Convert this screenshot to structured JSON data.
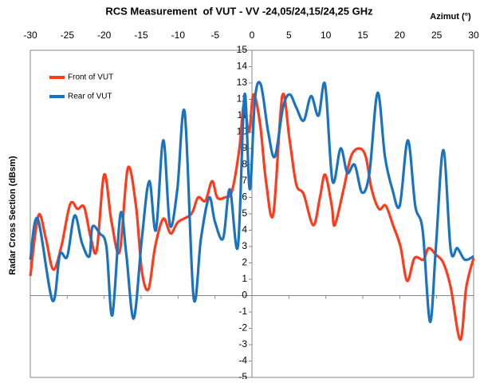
{
  "chart_data": {
    "type": "line",
    "title": "RCS Measurement  of VUT - VV -24,05/24,15/24,25 GHz",
    "x_label": "Azimut (°)",
    "y_label": "Radar Cross Section (dBsm)",
    "xlim": [
      -30,
      30
    ],
    "xticks": [
      -30,
      -25,
      -20,
      -15,
      -10,
      -5,
      0,
      5,
      10,
      15,
      20,
      25,
      30
    ],
    "ylim": [
      -5,
      15
    ],
    "yticks": [
      -5,
      -4,
      -3,
      -2,
      -1,
      0,
      1,
      2,
      3,
      4,
      5,
      6,
      7,
      8,
      9,
      10,
      11,
      12,
      13,
      14,
      15
    ],
    "legend": "top-left",
    "series": [
      {
        "name": "Front of VUT",
        "color": "#ff3b1c",
        "x": [
          -30,
          -28.9,
          -27.9,
          -26.9,
          -25.8,
          -24.6,
          -23.6,
          -22.7,
          -21.8,
          -21,
          -20,
          -19,
          -17.9,
          -16.8,
          -15.7,
          -14.9,
          -14,
          -13.1,
          -12,
          -11,
          -10,
          -8.2,
          -7.3,
          -6.3,
          -5.4,
          -4.7,
          -3.7,
          -2.7,
          -1.7,
          -1.1,
          -0.4,
          0.2,
          1.1,
          1.9,
          2.9,
          4.1,
          5.1,
          6,
          7,
          8.3,
          9.2,
          9.9,
          10.8,
          11.2,
          12.4,
          13.4,
          14.5,
          15.4,
          16.2,
          17.2,
          18.1,
          19.1,
          20.1,
          21,
          22,
          23.2,
          23.9,
          24.9,
          25.9,
          26.9,
          28.2,
          29,
          30
        ],
        "values": [
          1.2,
          4.9,
          3.5,
          1.6,
          3.0,
          5.6,
          5.3,
          5.4,
          3.5,
          2.8,
          7.4,
          4.5,
          2.7,
          7.8,
          5.5,
          1.5,
          0.4,
          3.0,
          4.7,
          3.8,
          4.5,
          5.0,
          6.0,
          5.8,
          7.0,
          6.0,
          6.0,
          6.4,
          9.0,
          11.7,
          10.0,
          12.3,
          10.5,
          7.0,
          5.0,
          12.2,
          9.5,
          6.8,
          6.2,
          4.3,
          6.0,
          7.4,
          5.5,
          4.3,
          6.5,
          8.5,
          9.0,
          8.5,
          6.5,
          5.3,
          5.5,
          4.3,
          3.0,
          0.9,
          2.3,
          2.2,
          2.9,
          2.5,
          2.0,
          0.5,
          -2.7,
          0.5,
          2.3
        ]
      },
      {
        "name": "Rear of VUT",
        "color": "#1a73c0",
        "x": [
          -30,
          -29,
          -27,
          -26,
          -25,
          -24,
          -23,
          -22,
          -21.6,
          -20.6,
          -19.7,
          -18.9,
          -17.8,
          -17,
          -16,
          -14.9,
          -13.9,
          -13,
          -12,
          -11.1,
          -10.1,
          -9.1,
          -7.9,
          -6.9,
          -5.8,
          -5,
          -3.9,
          -3,
          -1.9,
          -1,
          -0.3,
          0.4,
          1.2,
          2.2,
          3.1,
          4.2,
          5.1,
          6,
          7,
          8,
          9,
          9.9,
          10.9,
          12,
          12.9,
          13.9,
          14.9,
          15.9,
          17,
          18,
          19,
          20,
          21.1,
          22.1,
          23.1,
          24.1,
          24.9,
          25.9,
          26.9,
          27.8,
          28.8,
          30
        ],
        "values": [
          2.2,
          4.7,
          -0.3,
          2.5,
          2.4,
          4.9,
          3.2,
          2.4,
          4.2,
          3.8,
          3.0,
          -1.2,
          5.0,
          2.5,
          -1.4,
          3.5,
          7.0,
          4.0,
          9.5,
          4.3,
          6.5,
          11.2,
          -0.1,
          3.5,
          6.0,
          4.5,
          3.5,
          6.5,
          3.0,
          12.3,
          6.5,
          12.0,
          12.9,
          10.0,
          8.5,
          11.5,
          12.3,
          11.5,
          10.7,
          12.2,
          11.0,
          12.9,
          7.0,
          9.0,
          7.5,
          8.0,
          6.3,
          7.5,
          12.4,
          8.5,
          6.5,
          5.5,
          9.5,
          5.5,
          4.0,
          -1.6,
          3.0,
          8.9,
          2.8,
          2.9,
          2.2,
          2.4
        ]
      }
    ]
  }
}
